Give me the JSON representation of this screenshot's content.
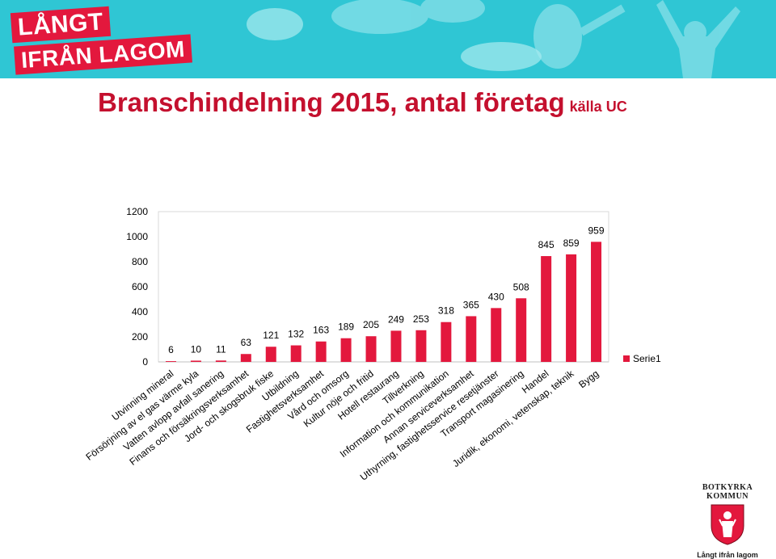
{
  "header": {
    "logo_line1": "LÅNGT",
    "logo_line2": "IFRÅN LAGOM",
    "accent_color": "#e3183d",
    "banner_color": "#2fc6d4"
  },
  "slide": {
    "title": "Branschindelning 2015, antal företag",
    "title_source": "källa UC",
    "title_color": "#c4102e"
  },
  "footer": {
    "kommun_name_line1": "BOTKYRKA",
    "kommun_name_line2": "KOMMUN",
    "tagline": "Långt ifrån lagom",
    "crest_icon": "municipal-crest-icon"
  },
  "chart_data": {
    "type": "bar",
    "categories": [
      "Utvinning mineral",
      "Försörjning av el gas värme kyla",
      "Vatten avlopp avfall sanering",
      "Finans och försäkringsverksamhet",
      "Jord- och skogsbruk fiske",
      "Utbildning",
      "Fastighetsverksamhet",
      "Vård och omsorg",
      "Kultur nöje och fritid",
      "Hotell restaurang",
      "Tillverkning",
      "Information och kommunikation",
      "Annan serviceverksamhet",
      "Uthyrning, fastighetsservice resetjänster",
      "Transport magasinering",
      "Handel",
      "Juridik, ekonomi, vetenskap, teknik",
      "Bygg"
    ],
    "series": [
      {
        "name": "Serie1",
        "color": "#e3183d",
        "values": [
          6,
          10,
          11,
          63,
          121,
          132,
          163,
          189,
          205,
          249,
          253,
          318,
          365,
          430,
          508,
          845,
          859,
          959
        ]
      }
    ],
    "ylim": [
      0,
      1200
    ],
    "yticks": [
      0,
      200,
      400,
      600,
      800,
      1000,
      1200
    ],
    "grid": false,
    "legend": "right",
    "data_labels": true
  }
}
